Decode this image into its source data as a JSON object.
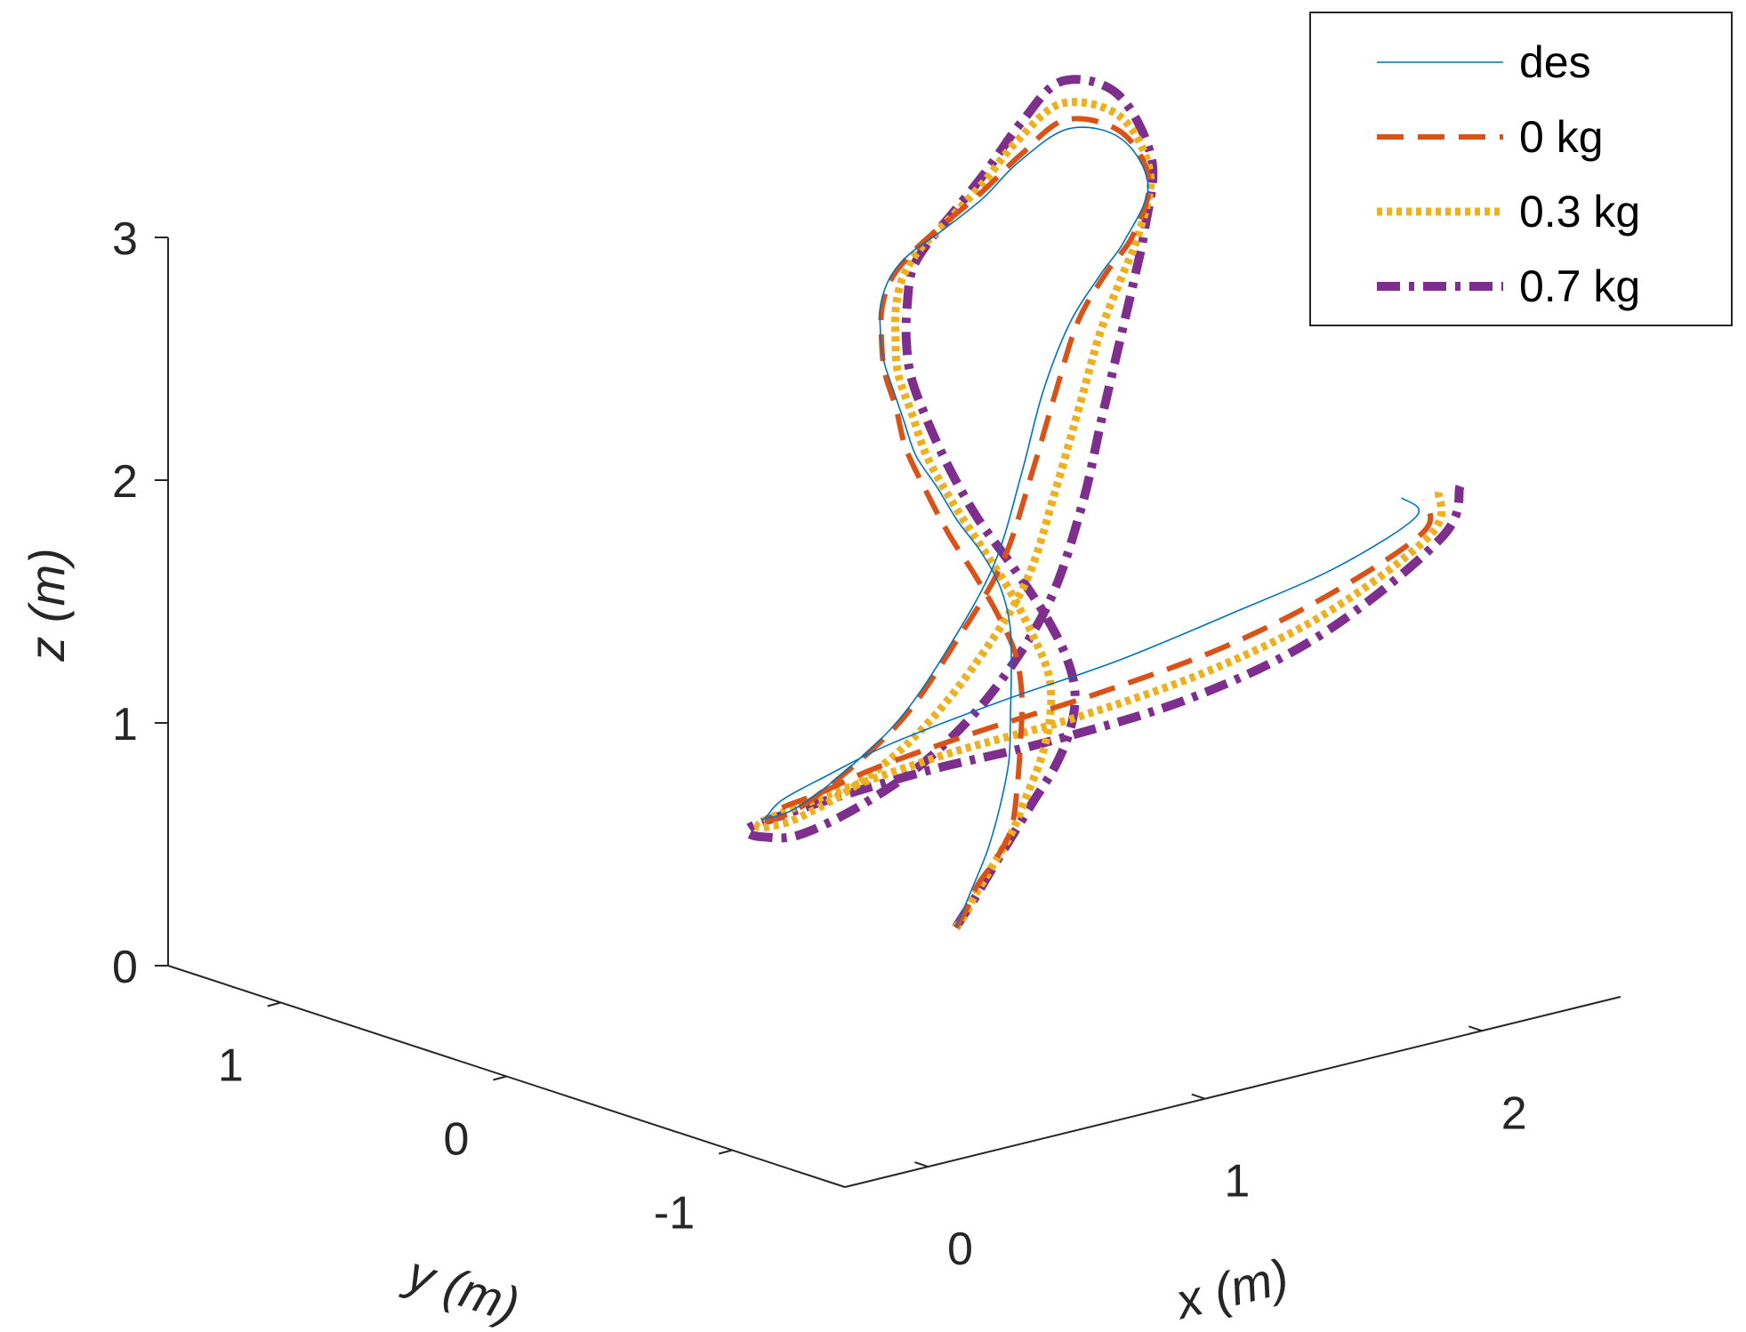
{
  "chart_data": {
    "type": "line",
    "subtype": "3d-line",
    "xlabel": "x (m)",
    "ylabel": "y (m)",
    "zlabel": "z (m)",
    "xlim": [
      -0.3,
      2.5
    ],
    "ylim": [
      -1.5,
      1.5
    ],
    "zlim": [
      0,
      3
    ],
    "x_ticks": [
      "0",
      "1",
      "2"
    ],
    "y_ticks": [
      "1",
      "0",
      "-1"
    ],
    "z_ticks": [
      "0",
      "1",
      "2",
      "3"
    ],
    "grid": false,
    "legend_position": "top-right",
    "series": [
      {
        "name": "des",
        "color": "#0072BD",
        "style": "solid",
        "x": [
          1.29,
          1.27,
          1.25,
          1.22,
          1.18,
          1.12,
          1.05,
          0.98,
          0.88,
          0.77,
          0.66,
          0.58,
          0.51,
          0.5,
          0.51,
          0.54,
          0.61,
          0.71,
          0.85,
          1.05,
          1.3,
          1.55,
          1.76,
          2.0,
          2.09,
          2.0,
          1.76,
          1.56,
          1.31,
          1.05,
          0.8,
          0.58,
          0.38,
          0.26,
          0.22,
          0.27,
          0.37,
          0.54,
          0.73,
          0.97,
          1.24,
          1.59,
          1.92,
          2.21,
          2.44,
          2.52,
          2.41
        ],
        "y": [
          -0.04,
          -0.13,
          -0.23,
          -0.32,
          -0.41,
          -0.49,
          -0.58,
          -0.66,
          -0.74,
          -0.79,
          -0.82,
          -0.83,
          -0.82,
          -0.78,
          -0.72,
          -0.64,
          -0.54,
          -0.42,
          -0.29,
          -0.13,
          0.04,
          0.16,
          0.26,
          0.33,
          0.21,
          -0.02,
          -0.21,
          -0.35,
          -0.52,
          -0.72,
          -0.93,
          -1.08,
          -1.12,
          -1.05,
          -0.85,
          -0.58,
          -0.32,
          -0.12,
          0.04,
          0.14,
          0.19,
          0.14,
          0.01,
          -0.14,
          -0.32,
          -0.57,
          -0.64
        ],
        "z": [
          0.18,
          0.36,
          0.57,
          0.78,
          1.01,
          1.24,
          1.47,
          1.7,
          1.91,
          2.1,
          2.27,
          2.43,
          2.58,
          2.71,
          2.82,
          2.91,
          2.98,
          3.03,
          3.06,
          3.05,
          3.02,
          3.05,
          3.11,
          3.16,
          3.13,
          3.03,
          2.93,
          2.89,
          2.81,
          2.66,
          2.45,
          2.19,
          1.91,
          1.63,
          1.36,
          1.12,
          0.97,
          0.87,
          0.84,
          0.84,
          0.88,
          0.97,
          1.09,
          1.25,
          1.43,
          1.69,
          1.82
        ]
      },
      {
        "name": "0 kg",
        "color": "#D95319",
        "style": "dashed",
        "x": [
          1.29,
          1.22,
          1.15,
          1.1,
          1.05,
          0.99,
          0.92,
          0.86,
          0.78,
          0.69,
          0.61,
          0.54,
          0.5,
          0.49,
          0.52,
          0.56,
          0.63,
          0.73,
          0.87,
          1.07,
          1.3,
          1.55,
          1.77,
          1.99,
          2.1,
          2.02,
          1.8,
          1.58,
          1.34,
          1.09,
          0.83,
          0.6,
          0.39,
          0.27,
          0.23,
          0.27,
          0.38,
          0.54,
          0.73,
          0.97,
          1.23,
          1.58,
          1.91,
          2.21,
          2.44,
          2.53,
          2.41
        ],
        "y": [
          -0.04,
          -0.18,
          -0.31,
          -0.45,
          -0.58,
          -0.68,
          -0.78,
          -0.86,
          -0.93,
          -0.96,
          -0.96,
          -0.93,
          -0.88,
          -0.8,
          -0.72,
          -0.62,
          -0.52,
          -0.4,
          -0.27,
          -0.12,
          0.04,
          0.16,
          0.26,
          0.33,
          0.22,
          0.0,
          -0.2,
          -0.35,
          -0.52,
          -0.73,
          -0.94,
          -1.09,
          -1.13,
          -1.06,
          -0.86,
          -0.6,
          -0.34,
          -0.13,
          0.05,
          0.17,
          0.24,
          0.23,
          0.11,
          -0.09,
          -0.29,
          -0.59,
          -0.74
        ],
        "z": [
          0.18,
          0.33,
          0.48,
          0.64,
          0.82,
          1.04,
          1.27,
          1.5,
          1.72,
          1.92,
          2.1,
          2.28,
          2.45,
          2.61,
          2.74,
          2.85,
          2.94,
          3.0,
          3.04,
          3.05,
          3.04,
          3.08,
          3.14,
          3.2,
          3.15,
          3.04,
          2.94,
          2.89,
          2.81,
          2.66,
          2.45,
          2.19,
          1.92,
          1.64,
          1.37,
          1.13,
          0.97,
          0.86,
          0.8,
          0.76,
          0.77,
          0.82,
          0.92,
          1.09,
          1.31,
          1.63,
          1.84
        ]
      },
      {
        "name": "0.3 kg",
        "color": "#EDB120",
        "style": "dotted",
        "x": [
          1.29,
          1.21,
          1.14,
          1.09,
          1.05,
          1.0,
          0.95,
          0.89,
          0.81,
          0.72,
          0.64,
          0.57,
          0.52,
          0.5,
          0.52,
          0.56,
          0.64,
          0.74,
          0.88,
          1.07,
          1.3,
          1.56,
          1.79,
          2.01,
          2.12,
          2.04,
          1.82,
          1.61,
          1.37,
          1.12,
          0.86,
          0.62,
          0.4,
          0.27,
          0.22,
          0.25,
          0.36,
          0.51,
          0.7,
          0.95,
          1.22,
          1.6,
          1.94,
          2.25,
          2.47,
          2.55,
          2.43
        ],
        "y": [
          -0.04,
          -0.18,
          -0.31,
          -0.44,
          -0.58,
          -0.71,
          -0.84,
          -0.95,
          -1.04,
          -1.08,
          -1.08,
          -1.04,
          -0.97,
          -0.88,
          -0.79,
          -0.68,
          -0.57,
          -0.45,
          -0.31,
          -0.15,
          0.02,
          0.17,
          0.3,
          0.37,
          0.25,
          0.02,
          -0.2,
          -0.38,
          -0.58,
          -0.8,
          -1.01,
          -1.17,
          -1.21,
          -1.12,
          -0.91,
          -0.62,
          -0.35,
          -0.12,
          0.07,
          0.21,
          0.3,
          0.33,
          0.23,
          0.02,
          -0.24,
          -0.6,
          -0.78
        ],
        "z": [
          0.18,
          0.3,
          0.44,
          0.6,
          0.8,
          1.01,
          1.23,
          1.45,
          1.66,
          1.86,
          2.06,
          2.25,
          2.43,
          2.6,
          2.74,
          2.86,
          2.95,
          3.02,
          3.06,
          3.07,
          3.06,
          3.11,
          3.18,
          3.25,
          3.2,
          3.06,
          2.94,
          2.87,
          2.77,
          2.62,
          2.4,
          2.13,
          1.86,
          1.59,
          1.33,
          1.1,
          0.95,
          0.84,
          0.76,
          0.71,
          0.69,
          0.71,
          0.78,
          0.95,
          1.21,
          1.62,
          1.88
        ]
      },
      {
        "name": "0.7 kg",
        "color": "#7E2F8E",
        "style": "dash-dot",
        "x": [
          1.29,
          1.21,
          1.14,
          1.1,
          1.07,
          1.03,
          0.98,
          0.92,
          0.84,
          0.75,
          0.66,
          0.58,
          0.52,
          0.5,
          0.51,
          0.55,
          0.63,
          0.74,
          0.88,
          1.08,
          1.31,
          1.58,
          1.82,
          2.04,
          2.15,
          2.07,
          1.85,
          1.64,
          1.4,
          1.14,
          0.88,
          0.63,
          0.4,
          0.26,
          0.2,
          0.22,
          0.33,
          0.48,
          0.67,
          0.92,
          1.2,
          1.6,
          1.96,
          2.29,
          2.51,
          2.58,
          2.45
        ],
        "y": [
          -0.04,
          -0.17,
          -0.3,
          -0.42,
          -0.55,
          -0.7,
          -0.86,
          -1.0,
          -1.12,
          -1.19,
          -1.2,
          -1.16,
          -1.08,
          -0.98,
          -0.87,
          -0.75,
          -0.63,
          -0.5,
          -0.35,
          -0.18,
          0.01,
          0.18,
          0.32,
          0.41,
          0.3,
          0.05,
          -0.19,
          -0.4,
          -0.63,
          -0.87,
          -1.1,
          -1.26,
          -1.3,
          -1.19,
          -0.96,
          -0.66,
          -0.36,
          -0.11,
          0.1,
          0.26,
          0.37,
          0.44,
          0.36,
          0.13,
          -0.17,
          -0.61,
          -0.85
        ],
        "z": [
          0.18,
          0.29,
          0.41,
          0.57,
          0.76,
          0.97,
          1.18,
          1.39,
          1.6,
          1.8,
          2.01,
          2.21,
          2.4,
          2.58,
          2.74,
          2.87,
          2.97,
          3.05,
          3.1,
          3.11,
          3.09,
          3.15,
          3.24,
          3.32,
          3.27,
          3.1,
          2.95,
          2.86,
          2.74,
          2.57,
          2.35,
          2.07,
          1.79,
          1.52,
          1.27,
          1.05,
          0.92,
          0.82,
          0.73,
          0.66,
          0.62,
          0.6,
          0.64,
          0.8,
          1.09,
          1.6,
          1.92
        ]
      }
    ]
  }
}
